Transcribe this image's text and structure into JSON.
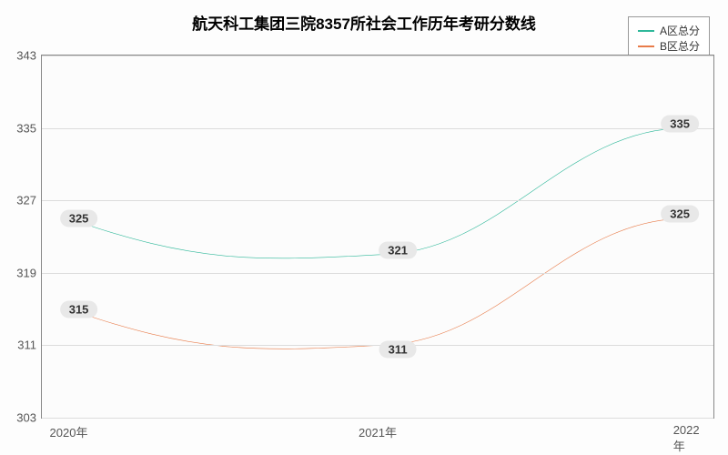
{
  "chart": {
    "type": "line",
    "title": "航天科工集团三院8357所社会工作历年考研分数线",
    "title_fontsize": 17,
    "title_color": "#000000",
    "background_color": "#fdfdfd",
    "plot_background": "#fcfcfc",
    "grid_color": "#dcdcdc",
    "border_color": "#888888",
    "x": {
      "labels": [
        "2020年",
        "2021年",
        "2022年"
      ],
      "positions_pct": [
        4,
        50,
        96
      ]
    },
    "y": {
      "min": 303,
      "max": 343,
      "ticks": [
        303,
        311,
        319,
        327,
        335,
        343
      ]
    },
    "legend": {
      "border_color": "#999999",
      "items": [
        {
          "label": "A区总分",
          "color": "#2fb89a"
        },
        {
          "label": "B区总分",
          "color": "#e87c4a"
        }
      ]
    },
    "series": [
      {
        "name": "A区总分",
        "color": "#2fb89a",
        "line_width": 2,
        "values": [
          325,
          321,
          335
        ],
        "label_offsets": [
          {
            "dx_pct": 1.5,
            "dy_val": 0
          },
          {
            "dx_pct": 3,
            "dy_val": 0.5
          },
          {
            "dx_pct": -1,
            "dy_val": 0.5
          }
        ]
      },
      {
        "name": "B区总分",
        "color": "#e87c4a",
        "line_width": 2,
        "values": [
          315,
          311,
          325
        ],
        "label_offsets": [
          {
            "dx_pct": 1.5,
            "dy_val": 0
          },
          {
            "dx_pct": 3,
            "dy_val": -0.5
          },
          {
            "dx_pct": -1,
            "dy_val": 0.5
          }
        ]
      }
    ]
  }
}
